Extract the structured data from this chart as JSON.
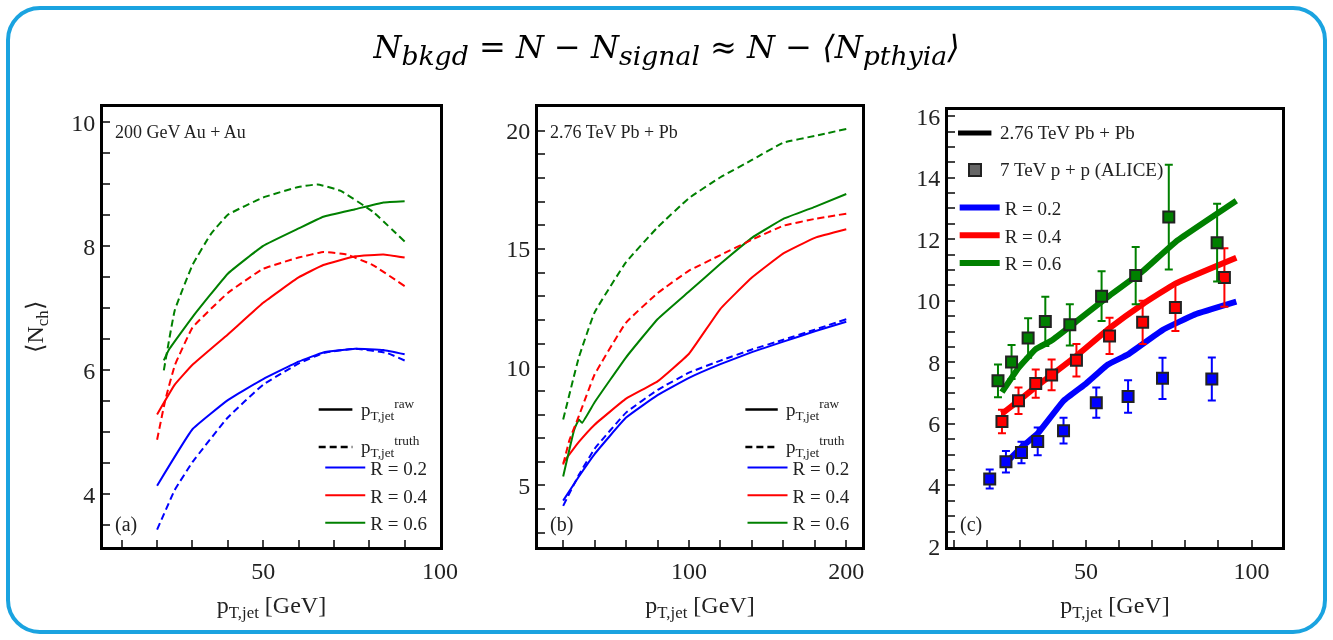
{
  "chart_data": [
    {
      "type": "line",
      "title": "N$_{bkgd}$ = N − N$_{signal}$ ≈ N − ⟨N$_{pthyia}$⟩",
      "xlabel": "p$_{T,jet}$ [GeV]",
      "ylabel": "⟨N$_{ch}$⟩",
      "annotations": [
        "p$_{T,jet}$$^{raw}$",
        "p$_{T,jet}$$^{truth}$",
        "200 GeV Au + Au",
        "(a)"
      ],
      "xlim": [
        4.7,
        100
      ],
      "xticks": [
        {
          "value": 10,
          "label": null
        },
        {
          "value": 20,
          "label": null
        },
        {
          "value": 30,
          "label": null
        },
        {
          "value": 40,
          "label": null
        },
        50,
        {
          "value": 60,
          "label": null
        },
        {
          "value": 70,
          "label": null
        },
        {
          "value": 80,
          "label": null
        },
        {
          "value": 90,
          "label": null
        },
        100
      ],
      "ylim": [
        3.15,
        10.25
      ],
      "yticks": [
        {
          "value": 3.5,
          "label": null
        },
        4,
        {
          "value": 4.5,
          "label": null
        },
        {
          "value": 5,
          "label": null
        },
        {
          "value": 5.5,
          "label": null
        },
        6,
        {
          "value": 6.5,
          "label": null
        },
        {
          "value": 7,
          "label": null
        },
        {
          "value": 7.5,
          "label": null
        },
        8,
        {
          "value": 8.5,
          "label": null
        },
        {
          "value": 9,
          "label": null
        },
        {
          "value": 9.5,
          "label": null
        },
        10
      ],
      "grid": false,
      "legend": "bottom right",
      "series": [
        {
          "name": "R = 0.2",
          "color": "#0000ff",
          "line_style": "solid",
          "x": [
            20,
            30,
            40,
            50,
            60,
            67,
            76,
            84,
            90
          ],
          "values": [
            4.14,
            5.05,
            5.52,
            5.86,
            6.14,
            6.29,
            6.35,
            6.33,
            6.26
          ]
        },
        {
          "name": "R = 0.4",
          "color": "#ff0000",
          "line_style": "solid",
          "x": [
            20,
            25,
            30,
            40,
            50,
            60,
            67,
            76,
            84,
            90
          ],
          "values": [
            5.29,
            5.77,
            6.09,
            6.58,
            7.09,
            7.5,
            7.7,
            7.84,
            7.87,
            7.82
          ]
        },
        {
          "name": "R = 0.6",
          "color": "#008000",
          "line_style": "solid",
          "x": [
            21.9,
            23.3,
            30,
            40,
            50,
            60,
            67,
            76,
            84,
            90
          ],
          "values": [
            6.16,
            6.33,
            6.86,
            7.56,
            8.01,
            8.29,
            8.48,
            8.6,
            8.71,
            8.73
          ]
        },
        {
          "color": "#0000ff",
          "line_style": "dashed",
          "x": [
            20,
            25,
            30,
            40,
            50,
            60,
            67,
            76,
            85,
            90
          ],
          "values": [
            3.43,
            4.07,
            4.52,
            5.24,
            5.77,
            6.11,
            6.28,
            6.35,
            6.28,
            6.16
          ]
        },
        {
          "color": "#ff0000",
          "line_style": "dashed",
          "x": [
            20,
            22.3,
            25,
            30,
            40,
            50,
            60,
            67,
            73.6,
            81,
            90
          ],
          "values": [
            4.88,
            5.52,
            6.08,
            6.69,
            7.25,
            7.64,
            7.82,
            7.91,
            7.87,
            7.7,
            7.36
          ]
        },
        {
          "color": "#008000",
          "line_style": "dashed",
          "x": [
            21.9,
            25,
            30,
            35.2,
            40,
            50,
            60,
            65.4,
            71.8,
            81,
            90
          ],
          "values": [
            6.0,
            6.97,
            7.7,
            8.2,
            8.51,
            8.79,
            8.96,
            9.0,
            8.9,
            8.56,
            8.08
          ]
        }
      ]
    },
    {
      "type": "line",
      "xlabel": "p$_{T,jet}$ [GeV]",
      "annotations": [
        "p$_{T,jet}$$^{raw}$",
        "p$_{T,jet}$$^{truth}$",
        "2.76 TeV Pb + Pb",
        "(b)"
      ],
      "xlim": [
        4,
        210
      ],
      "xticks": [
        {
          "value": 20,
          "label": null
        },
        {
          "value": 40,
          "label": null
        },
        {
          "value": 60,
          "label": null
        },
        {
          "value": 80,
          "label": null
        },
        100,
        {
          "value": 120,
          "label": null
        },
        {
          "value": 140,
          "label": null
        },
        {
          "value": 160,
          "label": null
        },
        {
          "value": 180,
          "label": null
        },
        200
      ],
      "ylim": [
        2.4,
        21
      ],
      "yticks": [
        {
          "value": 3,
          "label": null
        },
        {
          "value": 4,
          "label": null
        },
        5,
        {
          "value": 6,
          "label": null
        },
        {
          "value": 7,
          "label": null
        },
        {
          "value": 8,
          "label": null
        },
        {
          "value": 9,
          "label": null
        },
        10,
        {
          "value": 11,
          "label": null
        },
        {
          "value": 12,
          "label": null
        },
        {
          "value": 13,
          "label": null
        },
        {
          "value": 14,
          "label": null
        },
        15,
        {
          "value": 16,
          "label": null
        },
        {
          "value": 17,
          "label": null
        },
        {
          "value": 18,
          "label": null
        },
        {
          "value": 19,
          "label": null
        },
        20
      ],
      "grid": false,
      "legend": "bottom right",
      "series": [
        {
          "name": "R = 0.2",
          "color": "#0000ff",
          "line_style": "solid",
          "x": [
            20,
            30,
            40,
            60,
            80,
            100,
            120,
            140,
            160,
            180,
            200
          ],
          "values": [
            4.36,
            5.38,
            6.33,
            7.87,
            8.82,
            9.55,
            10.13,
            10.64,
            11.08,
            11.52,
            11.92
          ]
        },
        {
          "name": "R = 0.4",
          "color": "#ff0000",
          "line_style": "solid",
          "x": [
            20,
            30,
            40,
            60,
            80,
            100,
            120,
            140,
            160,
            180,
            200
          ],
          "values": [
            5.96,
            6.84,
            7.57,
            8.67,
            9.4,
            10.57,
            12.47,
            13.79,
            14.81,
            15.47,
            15.83
          ]
        },
        {
          "name": "R = 0.6",
          "color": "#008000",
          "line_style": "solid",
          "x": [
            20,
            27,
            30,
            32,
            40,
            60,
            80,
            100,
            120,
            140,
            160,
            180,
            200
          ],
          "values": [
            5.38,
            7.35,
            7.79,
            7.65,
            8.52,
            10.42,
            12.03,
            13.2,
            14.37,
            15.47,
            16.27,
            16.78,
            17.32
          ]
        },
        {
          "color": "#0000ff",
          "line_style": "dashed",
          "x": [
            20,
            30,
            40,
            60,
            80,
            100,
            120,
            140,
            160,
            180,
            200
          ],
          "values": [
            4.14,
            5.45,
            6.55,
            8.08,
            9.04,
            9.77,
            10.28,
            10.75,
            11.16,
            11.59,
            12.03
          ]
        },
        {
          "color": "#ff0000",
          "line_style": "dashed",
          "x": [
            20,
            24,
            30,
            40,
            60,
            80,
            100,
            120,
            140,
            160,
            180,
            200
          ],
          "values": [
            5.89,
            6.92,
            7.94,
            9.69,
            11.89,
            13.13,
            14.08,
            14.74,
            15.39,
            15.98,
            16.27,
            16.49
          ]
        },
        {
          "color": "#008000",
          "line_style": "dashed",
          "x": [
            20,
            30,
            40,
            60,
            80,
            100,
            120,
            140,
            160,
            180,
            200
          ],
          "values": [
            7.79,
            10.42,
            12.32,
            14.44,
            15.91,
            17.15,
            18.03,
            18.76,
            19.49,
            19.78,
            20.07
          ]
        }
      ]
    },
    {
      "type": "line",
      "xlabel": "p$_{T,jet}$ [GeV]",
      "annotations": [
        "2.76 TeV Pb + Pb",
        "7 TeV p + p (ALICE)",
        "(c)"
      ],
      "xlim": [
        8.3,
        109.2
      ],
      "xticks": [
        {
          "value": 10,
          "label": null
        },
        {
          "value": 20,
          "label": null
        },
        {
          "value": 30,
          "label": null
        },
        {
          "value": 40,
          "label": null
        },
        50,
        {
          "value": 60,
          "label": null
        },
        {
          "value": 70,
          "label": null
        },
        {
          "value": 80,
          "label": null
        },
        {
          "value": 90,
          "label": null
        },
        100
      ],
      "ylim": [
        2,
        16.2
      ],
      "yticks": [
        2,
        {
          "value": 2.5,
          "label": null
        },
        {
          "value": 3,
          "label": null
        },
        {
          "value": 3.5,
          "label": null
        },
        4,
        {
          "value": 4.5,
          "label": null
        },
        {
          "value": 5,
          "label": null
        },
        {
          "value": 5.5,
          "label": null
        },
        6,
        {
          "value": 6.5,
          "label": null
        },
        {
          "value": 7,
          "label": null
        },
        {
          "value": 7.5,
          "label": null
        },
        8,
        {
          "value": 8.5,
          "label": null
        },
        {
          "value": 9,
          "label": null
        },
        {
          "value": 9.5,
          "label": null
        },
        10,
        {
          "value": 10.5,
          "label": null
        },
        {
          "value": 11,
          "label": null
        },
        {
          "value": 11.5,
          "label": null
        },
        12,
        {
          "value": 12.5,
          "label": null
        },
        {
          "value": 13,
          "label": null
        },
        {
          "value": 13.5,
          "label": null
        },
        14,
        {
          "value": 14.5,
          "label": null
        },
        {
          "value": 15,
          "label": null
        },
        {
          "value": 15.5,
          "label": null
        },
        16
      ],
      "grid": false,
      "legend": "top left",
      "line_style": "solid",
      "series": [
        {
          "name": "R = 0.2",
          "color": "#0000ff",
          "x": [
            25.8,
            30.5,
            35.4,
            43.2,
            50,
            56.6,
            62.7,
            73.1,
            82.8,
            95.4
          ],
          "values": [
            4.73,
            5.24,
            5.69,
            6.75,
            7.31,
            7.93,
            8.26,
            9.05,
            9.55,
            9.97
          ]
        },
        {
          "name": "R = 0.4",
          "color": "#ff0000",
          "x": [
            24.6,
            29.6,
            34.8,
            39.6,
            47.1,
            57.1,
            67.1,
            77,
            95.4
          ],
          "values": [
            6.33,
            6.75,
            7.2,
            7.59,
            8.21,
            9.11,
            9.89,
            10.56,
            11.4
          ]
        },
        {
          "name": "R = 0.6",
          "color": "#008000",
          "x": [
            24.6,
            29.6,
            34.8,
            39.6,
            47.1,
            57.1,
            67.1,
            77,
            95.4
          ],
          "values": [
            7.03,
            7.82,
            8.43,
            8.71,
            9.33,
            10.17,
            10.96,
            11.91,
            13.25
          ]
        },
        {
          "type": "scatter",
          "marker": "square",
          "color": "#0000ff",
          "x": [
            20.9,
            25.8,
            30.5,
            35.4,
            43.2,
            53.1,
            62.7,
            73.1,
            88
          ],
          "values": [
            4.21,
            4.77,
            5.07,
            5.43,
            5.78,
            6.69,
            6.89,
            7.48,
            7.46
          ],
          "errors": [
            0.31,
            0.35,
            0.35,
            0.45,
            0.42,
            0.49,
            0.53,
            0.67,
            0.7
          ]
        },
        {
          "type": "scatter",
          "marker": "square",
          "color": "#ff0000",
          "x": [
            24.6,
            29.6,
            34.8,
            39.6,
            47.1,
            57.1,
            67.1,
            77,
            91.8
          ],
          "values": [
            6.08,
            6.75,
            7.31,
            7.59,
            8.07,
            8.86,
            9.3,
            9.78,
            10.76
          ],
          "errors": [
            0.38,
            0.43,
            0.46,
            0.5,
            0.53,
            0.59,
            0.7,
            0.76,
            0.95
          ]
        },
        {
          "type": "scatter",
          "marker": "square",
          "color": "#008000",
          "x": [
            23.4,
            27.5,
            32.5,
            37.7,
            45.1,
            54.7,
            65,
            75,
            89.6
          ],
          "values": [
            7.4,
            8.01,
            8.79,
            9.33,
            9.22,
            10.15,
            10.82,
            12.72,
            11.89
          ],
          "errors": [
            0.53,
            0.55,
            0.64,
            0.8,
            0.67,
            0.81,
            0.93,
            1.7,
            1.26
          ]
        }
      ]
    }
  ]
}
